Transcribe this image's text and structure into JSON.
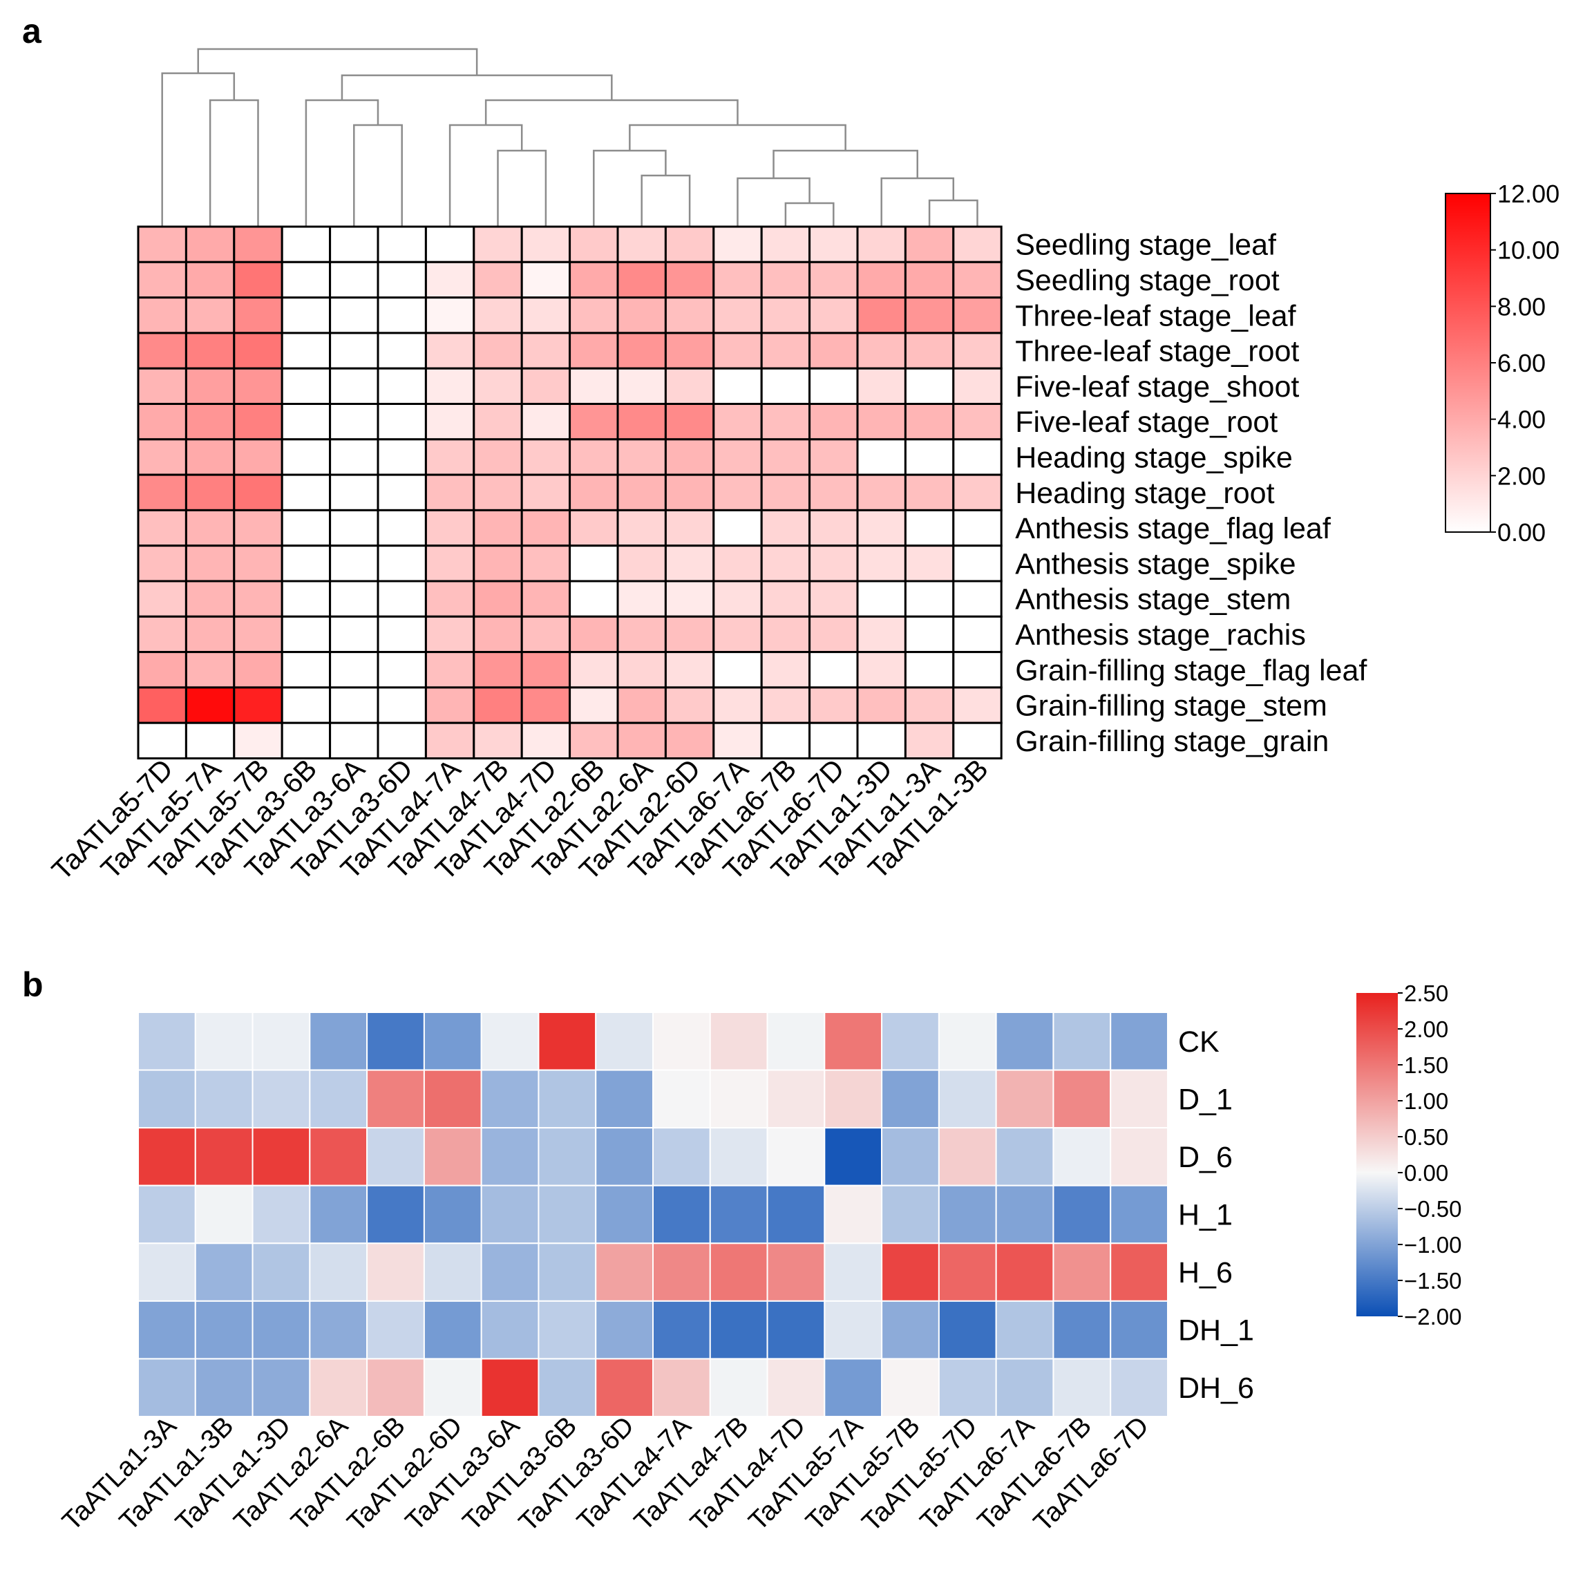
{
  "chart_data": [
    {
      "panel_label": "a",
      "type": "heatmap",
      "columns": [
        "TaATLa5-7D",
        "TaATLa5-7A",
        "TaATLa5-7B",
        "TaATLa3-6B",
        "TaATLa3-6A",
        "TaATLa3-6D",
        "TaATLa4-7A",
        "TaATLa4-7B",
        "TaATLa4-7D",
        "TaATLa2-6B",
        "TaATLa2-6A",
        "TaATLa2-6D",
        "TaATLa6-7A",
        "TaATLa6-7B",
        "TaATLa6-7D",
        "TaATLa1-3D",
        "TaATLa1-3A",
        "TaATLa1-3B"
      ],
      "rows": [
        "Seedling stage_leaf",
        "Seedling stage_root",
        "Three-leaf stage_leaf",
        "Three-leaf stage_root",
        "Five-leaf stage_shoot",
        "Five-leaf stage_root",
        "Heading stage_spike",
        "Heading stage_root",
        "Anthesis stage_flag leaf",
        "Anthesis stage_spike",
        "Anthesis stage_stem",
        "Anthesis stage_rachis",
        "Grain-filling stage_flag leaf",
        "Grain-filling stage_stem",
        "Grain-filling stage_grain"
      ],
      "values": [
        [
          3.5,
          4.0,
          5.0,
          0,
          0,
          0,
          0,
          2.0,
          1.5,
          2.5,
          2.0,
          2.5,
          1.0,
          1.5,
          1.5,
          2.0,
          3.5,
          2.0
        ],
        [
          3.5,
          4.0,
          6.5,
          0,
          0,
          0,
          1.0,
          3.0,
          0.5,
          4.0,
          5.5,
          5.0,
          3.0,
          3.0,
          3.0,
          4.0,
          4.0,
          3.5
        ],
        [
          3.5,
          3.5,
          5.5,
          0,
          0,
          0,
          0.5,
          2.0,
          1.5,
          3.0,
          3.5,
          3.0,
          2.5,
          2.5,
          2.5,
          5.5,
          5.0,
          4.5
        ],
        [
          5.5,
          6.0,
          6.5,
          0,
          0,
          0,
          2.0,
          3.0,
          2.5,
          4.0,
          5.0,
          4.5,
          3.0,
          3.0,
          3.5,
          3.0,
          3.0,
          2.5
        ],
        [
          3.5,
          4.5,
          5.0,
          0,
          0,
          0,
          1.0,
          2.0,
          2.5,
          1.0,
          1.0,
          2.0,
          0,
          0,
          0,
          1.5,
          0,
          1.5
        ],
        [
          4.0,
          5.0,
          6.0,
          0,
          0,
          0,
          1.0,
          2.5,
          1.0,
          5.0,
          5.5,
          5.5,
          3.0,
          3.0,
          3.5,
          3.5,
          3.5,
          3.0
        ],
        [
          3.5,
          4.0,
          4.0,
          0,
          0,
          0,
          2.5,
          3.0,
          2.5,
          3.0,
          3.0,
          3.5,
          3.0,
          3.0,
          3.0,
          0,
          0,
          0
        ],
        [
          5.5,
          6.0,
          6.5,
          0,
          0,
          0,
          3.0,
          3.0,
          2.5,
          3.5,
          3.5,
          3.5,
          3.0,
          3.0,
          3.0,
          3.0,
          3.0,
          2.5
        ],
        [
          3.0,
          3.5,
          3.5,
          0,
          0,
          0,
          2.5,
          3.5,
          3.5,
          2.5,
          2.0,
          2.0,
          0,
          2.0,
          2.0,
          1.5,
          0,
          0
        ],
        [
          3.0,
          3.5,
          3.5,
          0,
          0,
          0,
          2.5,
          3.5,
          3.0,
          0,
          2.0,
          1.5,
          2.0,
          2.0,
          2.0,
          1.5,
          1.5,
          0
        ],
        [
          2.5,
          3.5,
          3.5,
          0,
          0,
          0,
          3.0,
          4.0,
          3.5,
          0,
          1.0,
          1.0,
          1.5,
          2.0,
          2.0,
          0,
          0,
          0
        ],
        [
          3.0,
          3.5,
          3.5,
          0,
          0,
          0,
          2.5,
          3.5,
          3.0,
          3.5,
          3.0,
          3.0,
          2.5,
          2.5,
          2.5,
          1.5,
          0,
          0
        ],
        [
          4.0,
          3.5,
          4.0,
          0,
          0,
          0,
          3.0,
          5.0,
          5.0,
          1.5,
          2.0,
          1.5,
          0,
          1.5,
          0,
          1.5,
          0,
          0
        ],
        [
          7.5,
          11.5,
          10.5,
          0,
          0,
          0,
          3.5,
          6.0,
          5.5,
          1.0,
          3.5,
          2.5,
          1.5,
          2.0,
          2.5,
          3.0,
          2.5,
          1.5
        ],
        [
          0,
          0,
          0.8,
          0,
          0,
          0,
          2.5,
          2.0,
          1.0,
          3.0,
          3.5,
          3.5,
          1.0,
          0,
          0,
          0,
          2.0,
          0
        ]
      ],
      "colorbar": {
        "min": 0,
        "max": 12,
        "ticks": [
          "12.00",
          "10.00",
          "8.00",
          "6.00",
          "4.00",
          "2.00",
          "0.00"
        ],
        "low_color": "#ffffff",
        "high_color": "#ff0000"
      },
      "dendrogram": "hierarchical clustering of columns drawn above the heatmap",
      "cell_borders": "black",
      "grid": true
    },
    {
      "panel_label": "b",
      "type": "heatmap",
      "columns": [
        "TaATLa1-3A",
        "TaATLa1-3B",
        "TaATLa1-3D",
        "TaATLa2-6A",
        "TaATLa2-6B",
        "TaATLa2-6D",
        "TaATLa3-6A",
        "TaATLa3-6B",
        "TaATLa3-6D",
        "TaATLa4-7A",
        "TaATLa4-7B",
        "TaATLa4-7D",
        "TaATLa5-7A",
        "TaATLa5-7B",
        "TaATLa5-7D",
        "TaATLa6-7A",
        "TaATLa6-7B",
        "TaATLa6-7D"
      ],
      "rows": [
        "CK",
        "D_1",
        "D_6",
        "H_1",
        "H_6",
        "DH_1",
        "DH_6"
      ],
      "values": [
        [
          -0.5,
          -0.1,
          -0.1,
          -1.0,
          -1.5,
          -1.1,
          -0.1,
          2.3,
          -0.2,
          0.05,
          0.3,
          -0.05,
          1.5,
          -0.5,
          -0.05,
          -1.0,
          -0.6,
          -1.0
        ],
        [
          -0.6,
          -0.5,
          -0.4,
          -0.5,
          1.4,
          1.6,
          -0.8,
          -0.6,
          -1.0,
          -0.02,
          0.05,
          0.2,
          0.4,
          -1.0,
          -0.3,
          0.8,
          1.3,
          0.2
        ],
        [
          2.2,
          2.1,
          2.2,
          1.9,
          -0.4,
          1.0,
          -0.8,
          -0.6,
          -1.0,
          -0.5,
          -0.2,
          -0.02,
          -1.9,
          -0.7,
          0.5,
          -0.6,
          -0.1,
          0.2
        ],
        [
          -0.5,
          -0.05,
          -0.4,
          -1.0,
          -1.5,
          -1.2,
          -0.7,
          -0.6,
          -1.0,
          -1.5,
          -1.4,
          -1.5,
          0.1,
          -0.6,
          -1.0,
          -1.0,
          -1.4,
          -1.1
        ],
        [
          -0.2,
          -0.8,
          -0.6,
          -0.3,
          0.3,
          -0.3,
          -0.8,
          -0.6,
          1.0,
          1.3,
          1.5,
          1.3,
          -0.2,
          2.1,
          1.7,
          1.9,
          1.2,
          1.8
        ],
        [
          -1.0,
          -1.0,
          -1.0,
          -0.9,
          -0.4,
          -1.1,
          -0.7,
          -0.5,
          -0.9,
          -1.5,
          -1.6,
          -1.6,
          -0.2,
          -0.9,
          -1.6,
          -0.6,
          -1.3,
          -1.2
        ],
        [
          -0.7,
          -0.9,
          -0.9,
          0.4,
          0.7,
          -0.05,
          2.3,
          -0.6,
          1.7,
          0.6,
          -0.05,
          0.2,
          -1.1,
          0.05,
          -0.5,
          -0.6,
          -0.2,
          -0.4
        ]
      ],
      "colorbar": {
        "min": -2,
        "max": 2.5,
        "ticks": [
          "2.50",
          "2.00",
          "1.50",
          "1.00",
          "0.50",
          "0.00",
          "−0.50",
          "−1.00",
          "−1.50",
          "−2.00"
        ],
        "low_color": "#0b4fb5",
        "mid_color": "#f7f7f7",
        "high_color": "#e8221f"
      },
      "cell_borders": "white",
      "grid": true
    }
  ],
  "colors": {
    "dendrogram_line": "#8c8c8c",
    "panel_a_border": "#000000",
    "panel_b_border": "#ffffff"
  }
}
